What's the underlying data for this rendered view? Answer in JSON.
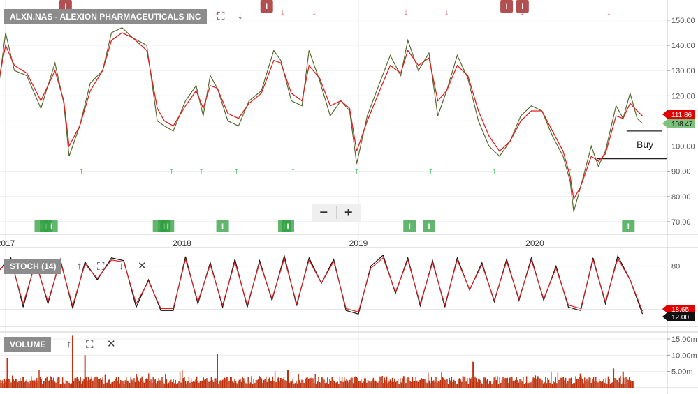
{
  "symbol_label": "ALXN.NAS - ALEXION PHARMACEUTICALS INC",
  "stoch_label": "STOCH (14)",
  "volume_label": "VOLUME",
  "annotation_text": "Buy",
  "zoom": {
    "minus": "−",
    "plus": "+"
  },
  "icons": {
    "expand": "expand-icon",
    "arrow_down": "arrow-down-icon",
    "arrow_up": "arrow-up-icon",
    "close": "close-icon",
    "minus": "minus-icon",
    "plus": "plus-icon"
  },
  "colors": {
    "price": "#556b2f",
    "moving_average": "#e02020",
    "stoch_k": "#111111",
    "stoch_d": "#e02020",
    "volume": "#c0300c",
    "buy_arrow": "#22bb44",
    "sell_arrow": "#e07070",
    "up_badge": "#2e9e3e",
    "down_badge": "#b05050",
    "current_tag": "#e00000",
    "ma_tag": "#7cc27c"
  },
  "chart_data": [
    {
      "type": "line",
      "name": "price",
      "x_labels": [
        "2017",
        "2018",
        "2019",
        "2020"
      ],
      "ylim": [
        65,
        158
      ],
      "y_ticks": [
        70,
        80,
        90,
        100,
        110,
        120,
        130,
        140,
        150
      ],
      "y_tick_labels": [
        "70.00",
        "80.00",
        "90.00",
        "100.00",
        "110.00",
        "120.00",
        "130.00",
        "140.00",
        "150.00"
      ],
      "x": [
        2016.95,
        2017.0,
        2017.05,
        2017.12,
        2017.2,
        2017.28,
        2017.33,
        2017.36,
        2017.42,
        2017.48,
        2017.55,
        2017.6,
        2017.66,
        2017.72,
        2017.8,
        2017.86,
        2017.9,
        2017.95,
        2018.02,
        2018.08,
        2018.12,
        2018.16,
        2018.2,
        2018.26,
        2018.32,
        2018.38,
        2018.45,
        2018.52,
        2018.56,
        2018.62,
        2018.68,
        2018.72,
        2018.78,
        2018.84,
        2018.9,
        2018.95,
        2018.99,
        2019.05,
        2019.12,
        2019.18,
        2019.24,
        2019.28,
        2019.34,
        2019.4,
        2019.45,
        2019.5,
        2019.56,
        2019.62,
        2019.68,
        2019.74,
        2019.8,
        2019.86,
        2019.92,
        2019.98,
        2020.04,
        2020.1,
        2020.16,
        2020.2,
        2020.22,
        2020.26,
        2020.32,
        2020.36,
        2020.4,
        2020.46,
        2020.5,
        2020.54,
        2020.58,
        2020.61
      ],
      "y": [
        118,
        145,
        130,
        128,
        115,
        133,
        117,
        96,
        108,
        125,
        130,
        145,
        147,
        143,
        140,
        110,
        108,
        106,
        118,
        124,
        112,
        128,
        123,
        110,
        108,
        118,
        122,
        138,
        134,
        118,
        116,
        138,
        126,
        112,
        118,
        114,
        93,
        112,
        125,
        136,
        128,
        142,
        130,
        137,
        112,
        122,
        136,
        127,
        110,
        100,
        96,
        102,
        112,
        116,
        114,
        104,
        96,
        86,
        74,
        84,
        100,
        92,
        98,
        116,
        111,
        121,
        111,
        109
      ],
      "moving_average": [
        122,
        140,
        132,
        129,
        118,
        130,
        118,
        100,
        108,
        122,
        130,
        142,
        145,
        143,
        138,
        115,
        110,
        108,
        116,
        122,
        115,
        124,
        123,
        113,
        111,
        117,
        121,
        134,
        133,
        121,
        118,
        132,
        127,
        116,
        118,
        115,
        98,
        110,
        122,
        132,
        129,
        138,
        132,
        135,
        118,
        122,
        132,
        128,
        114,
        104,
        98,
        102,
        110,
        114,
        114,
        106,
        98,
        88,
        79,
        84,
        96,
        94,
        97,
        112,
        111,
        117,
        114,
        112
      ],
      "current_tags": [
        "111.86",
        "108.47"
      ],
      "sell_signals_x": [
        2017.34,
        2017.8,
        2018.07,
        2018.2,
        2018.57,
        2018.75,
        2019.27,
        2019.5,
        2019.93,
        2020.42
      ],
      "buy_signals_x": [
        2017.43,
        2017.94,
        2018.11,
        2018.31,
        2018.63,
        2018.99,
        2019.41,
        2019.77,
        2020.2
      ],
      "badges_top_x": [
        2017.34,
        2018.48,
        2019.84,
        2019.93
      ],
      "badges_bottom_x": [
        2017.2,
        2017.23,
        2017.26,
        2017.87,
        2017.9,
        2017.92,
        2018.23,
        2018.58,
        2018.6,
        2019.29,
        2019.4,
        2020.53
      ],
      "buy_zone": [
        95,
        106
      ]
    },
    {
      "type": "line",
      "name": "stochastic",
      "ylim": [
        0,
        100
      ],
      "y_ticks": [
        80
      ],
      "y_tick_labels": [
        "80"
      ],
      "x": [
        2016.95,
        2017.03,
        2017.1,
        2017.17,
        2017.24,
        2017.31,
        2017.38,
        2017.45,
        2017.52,
        2017.6,
        2017.67,
        2017.74,
        2017.81,
        2017.88,
        2017.95,
        2018.02,
        2018.09,
        2018.16,
        2018.23,
        2018.3,
        2018.37,
        2018.44,
        2018.51,
        2018.58,
        2018.65,
        2018.72,
        2018.79,
        2018.86,
        2018.93,
        2019.0,
        2019.07,
        2019.14,
        2019.21,
        2019.28,
        2019.35,
        2019.42,
        2019.49,
        2019.56,
        2019.63,
        2019.7,
        2019.77,
        2019.84,
        2019.91,
        2019.98,
        2020.05,
        2020.12,
        2020.19,
        2020.26,
        2020.33,
        2020.4,
        2020.47,
        2020.54,
        2020.61
      ],
      "k": [
        70,
        92,
        20,
        88,
        25,
        90,
        18,
        86,
        60,
        92,
        88,
        20,
        60,
        15,
        15,
        94,
        25,
        85,
        20,
        90,
        20,
        88,
        30,
        95,
        22,
        92,
        55,
        90,
        15,
        10,
        80,
        96,
        40,
        92,
        22,
        88,
        20,
        92,
        45,
        85,
        28,
        90,
        30,
        92,
        30,
        80,
        20,
        15,
        92,
        25,
        95,
        60,
        10
      ],
      "d": [
        72,
        88,
        25,
        85,
        28,
        87,
        22,
        83,
        62,
        89,
        86,
        25,
        58,
        18,
        18,
        90,
        28,
        82,
        23,
        86,
        23,
        85,
        32,
        91,
        25,
        89,
        55,
        87,
        18,
        13,
        77,
        92,
        42,
        89,
        25,
        85,
        23,
        89,
        46,
        82,
        30,
        87,
        32,
        89,
        32,
        77,
        23,
        18,
        89,
        28,
        91,
        60,
        14
      ],
      "current_tags": [
        "18.65",
        "12.00"
      ]
    },
    {
      "type": "bar",
      "name": "volume",
      "ylim": [
        0,
        16.5
      ],
      "y_ticks": [
        5,
        10,
        15
      ],
      "y_tick_labels": [
        "5.00m",
        "10.00m",
        "15.00m"
      ],
      "spikes": [
        {
          "x": 2017.01,
          "value": 9.0
        },
        {
          "x": 2017.38,
          "value": 16.0
        },
        {
          "x": 2017.45,
          "value": 10.0
        },
        {
          "x": 2018.2,
          "value": 10.5
        },
        {
          "x": 2018.6,
          "value": 5.5
        },
        {
          "x": 2019.65,
          "value": 8.0
        },
        {
          "x": 2020.5,
          "value": 5.0
        }
      ]
    }
  ]
}
